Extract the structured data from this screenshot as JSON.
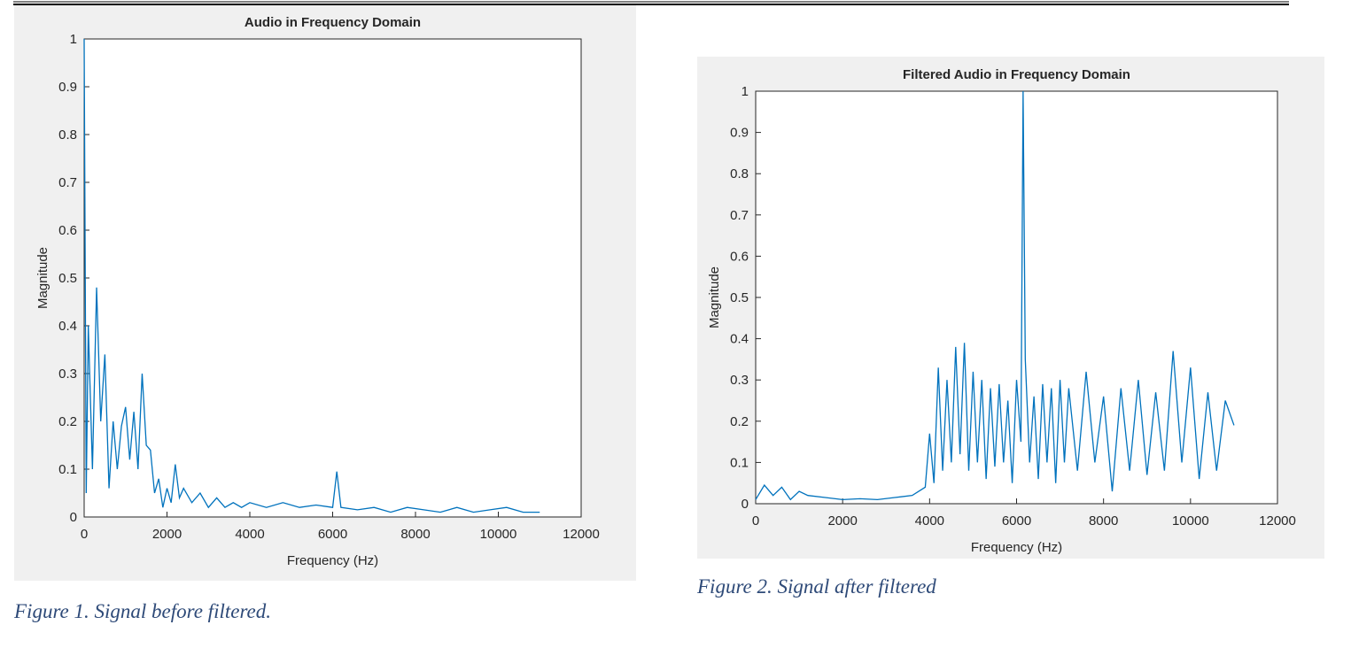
{
  "chart_data": [
    {
      "type": "line",
      "title": "Audio in Frequency Domain",
      "xlabel": "Frequency (Hz)",
      "ylabel": "Magnitude",
      "caption": "Figure 1. Signal before filtered.",
      "color": "#0072bd",
      "xlim": [
        0,
        12000
      ],
      "xticks": [
        0,
        2000,
        4000,
        6000,
        8000,
        10000,
        12000
      ],
      "ylim": [
        0,
        1
      ],
      "yticks": [
        0,
        0.1,
        0.2,
        0.3,
        0.4,
        0.5,
        0.6,
        0.7,
        0.8,
        0.9,
        1
      ],
      "x": [
        0,
        50,
        100,
        200,
        300,
        400,
        500,
        600,
        700,
        800,
        900,
        1000,
        1100,
        1200,
        1300,
        1400,
        1500,
        1600,
        1700,
        1800,
        1900,
        2000,
        2100,
        2200,
        2300,
        2400,
        2600,
        2800,
        3000,
        3200,
        3400,
        3600,
        3800,
        4000,
        4400,
        4800,
        5200,
        5600,
        6000,
        6100,
        6200,
        6600,
        7000,
        7400,
        7800,
        8200,
        8600,
        9000,
        9400,
        9800,
        10200,
        10600,
        11000
      ],
      "values": [
        1.0,
        0.05,
        0.4,
        0.1,
        0.48,
        0.2,
        0.34,
        0.06,
        0.2,
        0.1,
        0.19,
        0.23,
        0.12,
        0.22,
        0.1,
        0.3,
        0.15,
        0.14,
        0.05,
        0.08,
        0.02,
        0.06,
        0.03,
        0.11,
        0.04,
        0.06,
        0.03,
        0.05,
        0.02,
        0.04,
        0.02,
        0.03,
        0.02,
        0.03,
        0.02,
        0.03,
        0.02,
        0.025,
        0.02,
        0.095,
        0.02,
        0.015,
        0.02,
        0.01,
        0.02,
        0.015,
        0.01,
        0.02,
        0.01,
        0.015,
        0.02,
        0.01,
        0.01
      ]
    },
    {
      "type": "line",
      "title": "Filtered Audio in Frequency Domain",
      "xlabel": "Frequency (Hz)",
      "ylabel": "Magnitude",
      "caption": "Figure 2. Signal after filtered",
      "color": "#0072bd",
      "xlim": [
        0,
        12000
      ],
      "xticks": [
        0,
        2000,
        4000,
        6000,
        8000,
        10000,
        12000
      ],
      "ylim": [
        0,
        1
      ],
      "yticks": [
        0,
        0.1,
        0.2,
        0.3,
        0.4,
        0.5,
        0.6,
        0.7,
        0.8,
        0.9,
        1
      ],
      "x": [
        0,
        200,
        400,
        600,
        800,
        1000,
        1200,
        1600,
        2000,
        2400,
        2800,
        3200,
        3600,
        3900,
        4000,
        4100,
        4200,
        4300,
        4400,
        4500,
        4600,
        4700,
        4800,
        4900,
        5000,
        5100,
        5200,
        5300,
        5400,
        5500,
        5600,
        5700,
        5800,
        5900,
        6000,
        6100,
        6150,
        6200,
        6300,
        6400,
        6500,
        6600,
        6700,
        6800,
        6900,
        7000,
        7100,
        7200,
        7400,
        7600,
        7800,
        8000,
        8200,
        8400,
        8600,
        8800,
        9000,
        9200,
        9400,
        9600,
        9800,
        10000,
        10200,
        10400,
        10600,
        10800,
        11000
      ],
      "values": [
        0.01,
        0.045,
        0.02,
        0.04,
        0.01,
        0.03,
        0.02,
        0.015,
        0.01,
        0.012,
        0.01,
        0.015,
        0.02,
        0.04,
        0.17,
        0.05,
        0.33,
        0.08,
        0.3,
        0.1,
        0.38,
        0.12,
        0.39,
        0.08,
        0.32,
        0.1,
        0.3,
        0.06,
        0.28,
        0.09,
        0.29,
        0.1,
        0.25,
        0.05,
        0.3,
        0.15,
        1.0,
        0.35,
        0.1,
        0.26,
        0.06,
        0.29,
        0.1,
        0.28,
        0.05,
        0.3,
        0.1,
        0.28,
        0.08,
        0.32,
        0.1,
        0.26,
        0.03,
        0.28,
        0.08,
        0.3,
        0.07,
        0.27,
        0.08,
        0.37,
        0.1,
        0.33,
        0.06,
        0.27,
        0.08,
        0.25,
        0.19
      ]
    }
  ]
}
